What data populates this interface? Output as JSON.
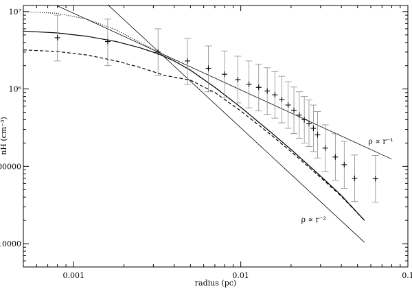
{
  "chart_data": {
    "type": "scatter",
    "title": "",
    "xlabel": "radius (pc)",
    "ylabel": "nH (cm⁻³)",
    "xscale": "log",
    "yscale": "log",
    "xlim": [
      0.0005,
      0.1
    ],
    "ylim": [
      5000,
      12000000
    ],
    "grid": false,
    "x_ticks": [
      {
        "value": 0.001,
        "label": "0.001"
      },
      {
        "value": 0.01,
        "label": "0.01"
      },
      {
        "value": 0.1,
        "label": "0.1"
      }
    ],
    "y_ticks": [
      {
        "value": 10000,
        "label": "10000"
      },
      {
        "value": 100000,
        "label": "100000"
      },
      {
        "value": 1000000,
        "label": "10⁶"
      },
      {
        "value": 10000000,
        "label": "10⁷"
      }
    ],
    "series": [
      {
        "style": "points-with-errorbars",
        "points": [
          {
            "x": 0.0008,
            "y": 4600000,
            "lo": 2300000,
            "hi": 9000000
          },
          {
            "x": 0.0016,
            "y": 4100000,
            "lo": 2000000,
            "hi": 8000000
          },
          {
            "x": 0.0032,
            "y": 3000000,
            "lo": 1500000,
            "hi": 6000000
          },
          {
            "x": 0.0048,
            "y": 2300000,
            "lo": 1150000,
            "hi": 4500000
          },
          {
            "x": 0.0064,
            "y": 1850000,
            "lo": 920000,
            "hi": 3600000
          },
          {
            "x": 0.008,
            "y": 1550000,
            "lo": 780000,
            "hi": 3100000
          },
          {
            "x": 0.0096,
            "y": 1320000,
            "lo": 660000,
            "hi": 2650000
          },
          {
            "x": 0.0112,
            "y": 1150000,
            "lo": 570000,
            "hi": 2300000
          },
          {
            "x": 0.0128,
            "y": 1050000,
            "lo": 520000,
            "hi": 2100000
          },
          {
            "x": 0.0144,
            "y": 940000,
            "lo": 470000,
            "hi": 1880000
          },
          {
            "x": 0.016,
            "y": 840000,
            "lo": 420000,
            "hi": 1680000
          },
          {
            "x": 0.0176,
            "y": 730000,
            "lo": 365000,
            "hi": 1460000
          },
          {
            "x": 0.0192,
            "y": 620000,
            "lo": 310000,
            "hi": 1240000
          },
          {
            "x": 0.0208,
            "y": 530000,
            "lo": 265000,
            "hi": 1060000
          },
          {
            "x": 0.0224,
            "y": 460000,
            "lo": 230000,
            "hi": 920000
          },
          {
            "x": 0.024,
            "y": 400000,
            "lo": 200000,
            "hi": 800000
          },
          {
            "x": 0.0256,
            "y": 360000,
            "lo": 180000,
            "hi": 720000
          },
          {
            "x": 0.0272,
            "y": 310000,
            "lo": 155000,
            "hi": 620000
          },
          {
            "x": 0.0288,
            "y": 255000,
            "lo": 128000,
            "hi": 510000
          },
          {
            "x": 0.032,
            "y": 172000,
            "lo": 86000,
            "hi": 344000
          },
          {
            "x": 0.0368,
            "y": 132000,
            "lo": 66000,
            "hi": 264000
          },
          {
            "x": 0.0416,
            "y": 105000,
            "lo": 52000,
            "hi": 210000
          },
          {
            "x": 0.048,
            "y": 70000,
            "lo": 35000,
            "hi": 140000
          },
          {
            "x": 0.064,
            "y": 69000,
            "lo": 34500,
            "hi": 138000
          }
        ]
      },
      {
        "style": "solid",
        "points": [
          [
            0.0005,
            5600000
          ],
          [
            0.0008,
            5300000
          ],
          [
            0.0012,
            4800000
          ],
          [
            0.0018,
            4100000
          ],
          [
            0.0025,
            3400000
          ],
          [
            0.0032,
            2850000
          ],
          [
            0.004,
            2300000
          ],
          [
            0.005,
            1750000
          ],
          [
            0.007,
            1050000
          ],
          [
            0.01,
            580000
          ],
          [
            0.015,
            280000
          ],
          [
            0.02,
            165000
          ],
          [
            0.03,
            75000
          ],
          [
            0.04,
            42000
          ],
          [
            0.055,
            20000
          ]
        ]
      },
      {
        "style": "dashed",
        "points": [
          [
            0.0005,
            3200000
          ],
          [
            0.0008,
            3050000
          ],
          [
            0.0012,
            2750000
          ],
          [
            0.0018,
            2300000
          ],
          [
            0.0025,
            1900000
          ],
          [
            0.0035,
            1500000
          ],
          [
            0.005,
            1300000
          ],
          [
            0.007,
            900000
          ],
          [
            0.01,
            520000
          ],
          [
            0.015,
            260000
          ],
          [
            0.02,
            155000
          ],
          [
            0.03,
            72000
          ],
          [
            0.04,
            41000
          ],
          [
            0.055,
            20000
          ]
        ]
      },
      {
        "style": "dotted",
        "points": [
          [
            0.0005,
            10000000
          ],
          [
            0.0008,
            9500000
          ],
          [
            0.0012,
            8000000
          ],
          [
            0.0018,
            5800000
          ],
          [
            0.0025,
            4000000
          ],
          [
            0.0032,
            3000000
          ],
          [
            0.004,
            2300000
          ],
          [
            0.005,
            1750000
          ],
          [
            0.007,
            1050000
          ],
          [
            0.01,
            580000
          ],
          [
            0.015,
            280000
          ],
          [
            0.02,
            165000
          ],
          [
            0.03,
            75000
          ],
          [
            0.04,
            42000
          ],
          [
            0.055,
            20000
          ]
        ]
      },
      {
        "style": "thin-solid",
        "points": [
          [
            0.00079,
            12000000
          ],
          [
            0.08,
            124000
          ]
        ]
      },
      {
        "style": "thin-solid",
        "points": [
          [
            0.0016,
            12300000
          ],
          [
            0.055,
            10400
          ]
        ]
      }
    ],
    "annotations": [
      {
        "text": "ρ ∝ r⁻¹",
        "x": 0.058,
        "y": 195000
      },
      {
        "text": "ρ ∝ r⁻²",
        "x": 0.023,
        "y": 19000
      }
    ]
  }
}
